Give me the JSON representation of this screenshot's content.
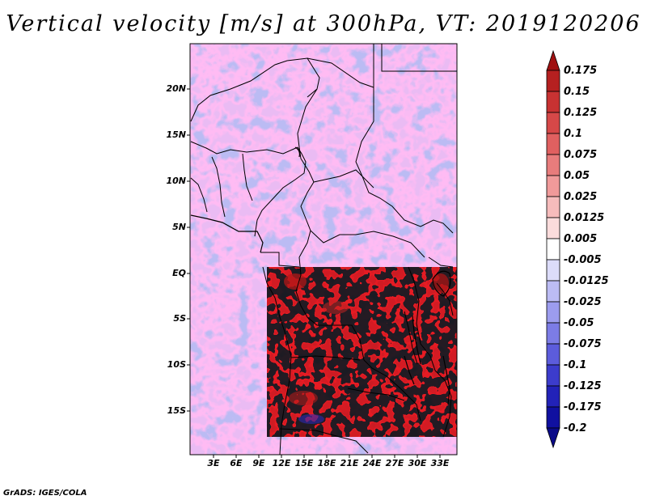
{
  "title": "Vertical velocity [m/s] at 300hPa, VT: 2019120206",
  "credit": "GrADS: IGES/COLA",
  "map": {
    "lat_ticks": [
      "20N",
      "15N",
      "10N",
      "5N",
      "EQ",
      "5S",
      "10S",
      "15S"
    ],
    "lon_ticks": [
      "3E",
      "6E",
      "9E",
      "12E",
      "15E",
      "18E",
      "21E",
      "24E",
      "27E",
      "30E",
      "33E"
    ]
  },
  "colorbar": {
    "labels": [
      "0.175",
      "0.15",
      "0.125",
      "0.1",
      "0.075",
      "0.05",
      "0.025",
      "0.0125",
      "0.005",
      "-0.005",
      "-0.0125",
      "-0.025",
      "-0.05",
      "-0.075",
      "-0.1",
      "-0.125",
      "-0.175",
      "-0.2"
    ],
    "colors": [
      "#a01010",
      "#b52020",
      "#c83232",
      "#d64848",
      "#e06060",
      "#e87c7c",
      "#f09a9a",
      "#f6bcbc",
      "#fbdcdc",
      "#ffffff",
      "#dcdcfa",
      "#bcbcf4",
      "#9c9cee",
      "#7c7ce6",
      "#5c5cdc",
      "#3c3ccc",
      "#2222b8",
      "#1010a0",
      "#0a0a88"
    ]
  }
}
